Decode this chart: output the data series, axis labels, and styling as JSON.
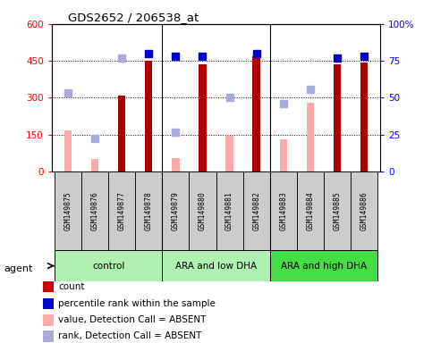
{
  "title": "GDS2652 / 206538_at",
  "samples": [
    "GSM149875",
    "GSM149876",
    "GSM149877",
    "GSM149878",
    "GSM149879",
    "GSM149880",
    "GSM149881",
    "GSM149882",
    "GSM149883",
    "GSM149884",
    "GSM149885",
    "GSM149886"
  ],
  "groups": [
    {
      "name": "control",
      "start": 0,
      "end": 3,
      "color": "#b0f0b0"
    },
    {
      "name": "ARA and low DHA",
      "start": 4,
      "end": 7,
      "color": "#b0f0b0"
    },
    {
      "name": "ARA and high DHA",
      "start": 8,
      "end": 11,
      "color": "#44dd44"
    }
  ],
  "count_values": [
    null,
    null,
    310,
    452,
    null,
    435,
    null,
    468,
    null,
    null,
    435,
    445
  ],
  "count_color": "#aa0000",
  "absent_value_bars": [
    168,
    50,
    null,
    null,
    55,
    null,
    145,
    null,
    130,
    280,
    null,
    null
  ],
  "absent_value_color": "#ffaaaa",
  "percentile_present": [
    null,
    null,
    null,
    478,
    470,
    470,
    null,
    480,
    null,
    null,
    460,
    470
  ],
  "percentile_absent": [
    318,
    135,
    460,
    null,
    160,
    null,
    302,
    null,
    275,
    335,
    null,
    null
  ],
  "percentile_present_color": "#0000cc",
  "percentile_absent_color": "#aaaadd",
  "ylim": [
    0,
    600
  ],
  "y2lim": [
    0,
    100
  ],
  "yticks": [
    0,
    150,
    300,
    450,
    600
  ],
  "ytick_labels": [
    "0",
    "150",
    "300",
    "450",
    "600"
  ],
  "y2ticks": [
    0,
    25,
    50,
    75,
    100
  ],
  "y2tick_labels": [
    "0",
    "25",
    "50",
    "75",
    "100%"
  ],
  "hlines": [
    150,
    300,
    450
  ],
  "legend_items": [
    {
      "label": "count",
      "color": "#cc0000"
    },
    {
      "label": "percentile rank within the sample",
      "color": "#0000cc"
    },
    {
      "label": "value, Detection Call = ABSENT",
      "color": "#ffaaaa"
    },
    {
      "label": "rank, Detection Call = ABSENT",
      "color": "#aaaadd"
    }
  ],
  "bar_width": 0.5,
  "scatter_size": 30,
  "sample_box_color": "#cccccc"
}
